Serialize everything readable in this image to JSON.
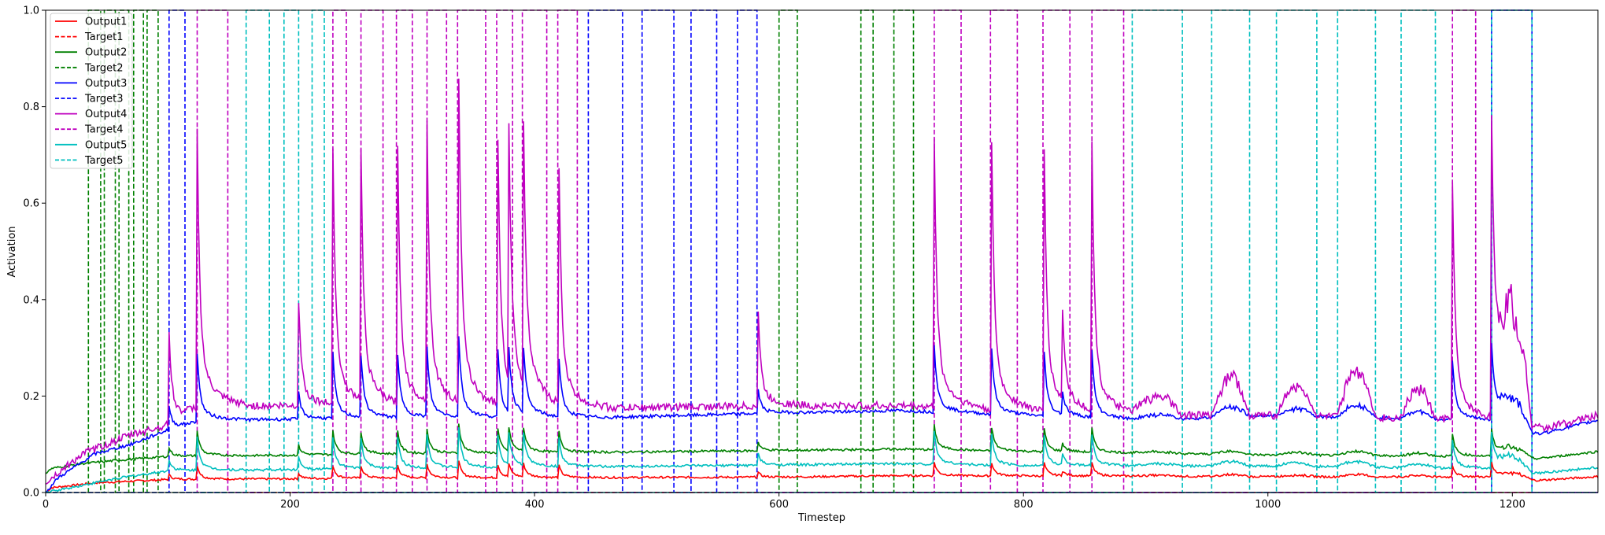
{
  "chart_data": {
    "type": "line",
    "title": "",
    "xlabel": "Timestep",
    "ylabel": "Activation",
    "xlim": [
      0,
      1270
    ],
    "ylim": [
      0,
      1.0
    ],
    "x_ticks": [
      0,
      200,
      400,
      600,
      800,
      1000,
      1200
    ],
    "x_tick_labels": [
      "0",
      "200",
      "400",
      "600",
      "800",
      "1000",
      "1200"
    ],
    "y_ticks": [
      0.0,
      0.2,
      0.4,
      0.6,
      0.8,
      1.0
    ],
    "y_tick_labels": [
      "0.0",
      "0.2",
      "0.4",
      "0.6",
      "0.8",
      "1.0"
    ],
    "grid": false,
    "legend": {
      "position": "top-left",
      "entries": [
        "Output1",
        "Target1",
        "Output2",
        "Target2",
        "Output3",
        "Target3",
        "Output4",
        "Target4",
        "Output5",
        "Target5"
      ]
    },
    "targets": [
      {
        "name": "Target1",
        "color": "#ff0000",
        "intervals": []
      },
      {
        "name": "Target2",
        "color": "#008000",
        "intervals": [
          [
            35,
            45
          ],
          [
            48,
            57
          ],
          [
            60,
            68
          ],
          [
            72,
            80
          ],
          [
            83,
            92
          ],
          [
            600,
            615
          ],
          [
            667,
            677
          ],
          [
            694,
            710
          ]
        ]
      },
      {
        "name": "Target3",
        "color": "#0000ff",
        "intervals": [
          [
            101,
            114
          ],
          [
            444,
            472
          ],
          [
            488,
            514
          ],
          [
            528,
            549
          ],
          [
            566,
            582
          ],
          [
            1183,
            1216
          ]
        ]
      },
      {
        "name": "Target4",
        "color": "#bf00bf",
        "intervals": [
          [
            124,
            149
          ],
          [
            235,
            246
          ],
          [
            258,
            276
          ],
          [
            287,
            300
          ],
          [
            312,
            328
          ],
          [
            337,
            360
          ],
          [
            369,
            382
          ],
          [
            390,
            410
          ],
          [
            419,
            435
          ],
          [
            727,
            749
          ],
          [
            773,
            795
          ],
          [
            816,
            838
          ],
          [
            856,
            882
          ],
          [
            1151,
            1170
          ]
        ]
      },
      {
        "name": "Target5",
        "color": "#00bfbf",
        "intervals": [
          [
            164,
            183
          ],
          [
            195,
            207
          ],
          [
            218,
            228
          ],
          [
            889,
            930
          ],
          [
            954,
            985
          ],
          [
            1007,
            1040
          ],
          [
            1057,
            1088
          ],
          [
            1109,
            1137
          ],
          [
            1183,
            1216
          ]
        ]
      }
    ],
    "outputs": [
      {
        "name": "Output1",
        "color": "#ff0000",
        "base": [
          [
            0,
            0.0
          ],
          [
            5,
            0.01
          ],
          [
            40,
            0.02
          ],
          [
            100,
            0.027
          ],
          [
            300,
            0.03
          ],
          [
            600,
            0.032
          ],
          [
            700,
            0.035
          ],
          [
            1000,
            0.033
          ],
          [
            1180,
            0.032
          ],
          [
            1220,
            0.025
          ],
          [
            1270,
            0.033
          ]
        ],
        "spike_scale": 0.05
      },
      {
        "name": "Output2",
        "color": "#008000",
        "base": [
          [
            0,
            0.04
          ],
          [
            5,
            0.05
          ],
          [
            30,
            0.06
          ],
          [
            60,
            0.067
          ],
          [
            100,
            0.075
          ],
          [
            300,
            0.08
          ],
          [
            600,
            0.087
          ],
          [
            700,
            0.09
          ],
          [
            800,
            0.085
          ],
          [
            1000,
            0.078
          ],
          [
            1180,
            0.075
          ],
          [
            1220,
            0.07
          ],
          [
            1270,
            0.085
          ]
        ],
        "spike_scale": 0.09
      },
      {
        "name": "Output3",
        "color": "#0000ff",
        "base": [
          [
            0,
            0.0
          ],
          [
            10,
            0.03
          ],
          [
            40,
            0.08
          ],
          [
            70,
            0.1
          ],
          [
            100,
            0.13
          ],
          [
            130,
            0.15
          ],
          [
            300,
            0.155
          ],
          [
            450,
            0.155
          ],
          [
            600,
            0.165
          ],
          [
            700,
            0.17
          ],
          [
            800,
            0.16
          ],
          [
            900,
            0.15
          ],
          [
            1000,
            0.16
          ],
          [
            1180,
            0.15
          ],
          [
            1220,
            0.12
          ],
          [
            1270,
            0.15
          ]
        ],
        "spike_scale": 0.25
      },
      {
        "name": "Output4",
        "color": "#bf00bf",
        "base": [
          [
            0,
            0.02
          ],
          [
            30,
            0.08
          ],
          [
            70,
            0.12
          ],
          [
            100,
            0.14
          ],
          [
            130,
            0.18
          ],
          [
            300,
            0.18
          ],
          [
            450,
            0.175
          ],
          [
            600,
            0.18
          ],
          [
            700,
            0.18
          ],
          [
            800,
            0.17
          ],
          [
            900,
            0.16
          ],
          [
            1000,
            0.16
          ],
          [
            1180,
            0.15
          ],
          [
            1220,
            0.13
          ],
          [
            1270,
            0.16
          ]
        ],
        "spike_scale": 1.0
      },
      {
        "name": "Output5",
        "color": "#00bfbf",
        "base": [
          [
            0,
            0.0
          ],
          [
            20,
            0.01
          ],
          [
            60,
            0.03
          ],
          [
            100,
            0.045
          ],
          [
            300,
            0.05
          ],
          [
            600,
            0.057
          ],
          [
            700,
            0.06
          ],
          [
            800,
            0.055
          ],
          [
            1000,
            0.055
          ],
          [
            1180,
            0.05
          ],
          [
            1220,
            0.04
          ],
          [
            1270,
            0.052
          ]
        ],
        "spike_scale": 0.12
      }
    ],
    "spikes": [
      {
        "t": 101,
        "peak": 0.34
      },
      {
        "t": 124,
        "peak": 0.65
      },
      {
        "t": 207,
        "peak": 0.36
      },
      {
        "t": 235,
        "peak": 0.62
      },
      {
        "t": 258,
        "peak": 0.6
      },
      {
        "t": 288,
        "peak": 0.61
      },
      {
        "t": 312,
        "peak": 0.65
      },
      {
        "t": 338,
        "peak": 0.73
      },
      {
        "t": 370,
        "peak": 0.63
      },
      {
        "t": 379,
        "peak": 0.62
      },
      {
        "t": 391,
        "peak": 0.62
      },
      {
        "t": 420,
        "peak": 0.58
      },
      {
        "t": 583,
        "peak": 0.34
      },
      {
        "t": 727,
        "peak": 0.64
      },
      {
        "t": 774,
        "peak": 0.63
      },
      {
        "t": 817,
        "peak": 0.62
      },
      {
        "t": 832,
        "peak": 0.33
      },
      {
        "t": 856,
        "peak": 0.63
      },
      {
        "t": 1151,
        "peak": 0.59
      },
      {
        "t": 1183,
        "peak": 0.7
      }
    ],
    "bumps": [
      {
        "from": 889,
        "to": 930,
        "height": 0.04
      },
      {
        "from": 954,
        "to": 985,
        "height": 0.08
      },
      {
        "from": 1007,
        "to": 1040,
        "height": 0.06
      },
      {
        "from": 1057,
        "to": 1088,
        "height": 0.1
      },
      {
        "from": 1109,
        "to": 1137,
        "height": 0.06
      },
      {
        "from": 1183,
        "to": 1216,
        "height": 0.22
      }
    ]
  }
}
